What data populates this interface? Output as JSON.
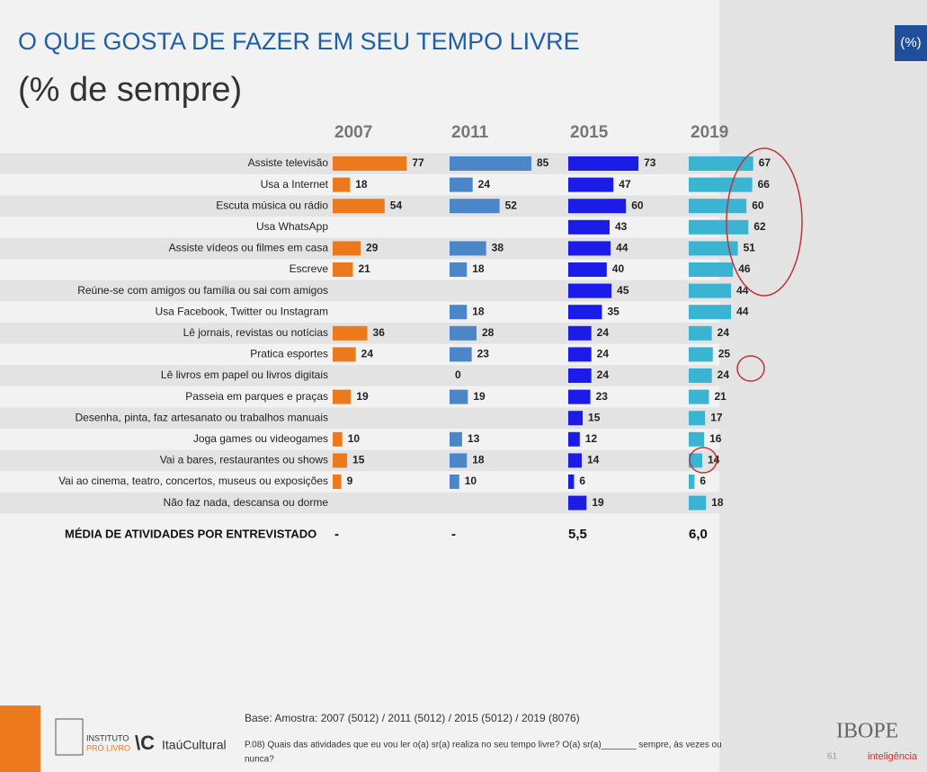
{
  "chart_data": {
    "type": "bar",
    "title": "O QUE GOSTA DE FAZER EM SEU TEMPO LIVRE",
    "subtitle": "(% de sempre)",
    "unit_badge": "(%)",
    "categories": [
      "Assiste televisão",
      "Usa a Internet",
      "Escuta música ou rádio",
      "Usa WhatsApp",
      "Assiste vídeos ou filmes em casa",
      "Escreve",
      "Reúne-se com amigos ou família ou sai com amigos",
      "Usa Facebook, Twitter  ou Instagram",
      "Lê jornais, revistas ou notícias",
      "Pratica esportes",
      "Lê livros em papel ou livros digitais",
      "Passeia em parques e praças",
      "Desenha, pinta, faz artesanato ou trabalhos manuais",
      "Joga games ou videogames",
      "Vai a bares, restaurantes ou shows",
      "Vai ao cinema, teatro, concertos, museus ou exposições",
      "Não faz nada, descansa ou dorme"
    ],
    "series": [
      {
        "name": "2007",
        "color": "#ec7a1c",
        "values": [
          77,
          18,
          54,
          null,
          29,
          21,
          null,
          null,
          36,
          24,
          null,
          19,
          null,
          10,
          15,
          9,
          null
        ]
      },
      {
        "name": "2011",
        "color": "#4a86c8",
        "values": [
          85,
          24,
          52,
          null,
          38,
          18,
          null,
          18,
          28,
          23,
          0,
          19,
          null,
          13,
          18,
          10,
          null
        ]
      },
      {
        "name": "2015",
        "color": "#1c1ce8",
        "values": [
          73,
          47,
          60,
          43,
          44,
          40,
          45,
          35,
          24,
          24,
          24,
          23,
          15,
          12,
          14,
          6,
          19
        ]
      },
      {
        "name": "2019",
        "color": "#3bb3d3",
        "values": [
          67,
          66,
          60,
          62,
          51,
          46,
          44,
          44,
          24,
          25,
          24,
          21,
          17,
          16,
          14,
          6,
          18
        ]
      }
    ],
    "summary_row": {
      "label": "MÉDIA DE ATIVIDADES POR ENTREVISTADO",
      "values": [
        "-",
        "-",
        "5,5",
        "6,0"
      ]
    }
  },
  "footer": {
    "base": "Base: Amostra: 2007 (5012) / 2011 (5012) / 2015 (5012) / 2019 (8076)",
    "question": [
      "P.08) Quais das atividades que eu vou ler o(a) sr(a) realiza no seu tempo livre? O(a) sr(a)_______ sempre, às vezes ou",
      "nunca?"
    ],
    "logo_institute": [
      "INSTITUTO",
      "PRÓ LIVRO"
    ],
    "logo_itau": "ItaúCultural",
    "logo_ibope": "IBOPE",
    "logo_ibope_sub": "inteligência",
    "page_number": "61"
  }
}
